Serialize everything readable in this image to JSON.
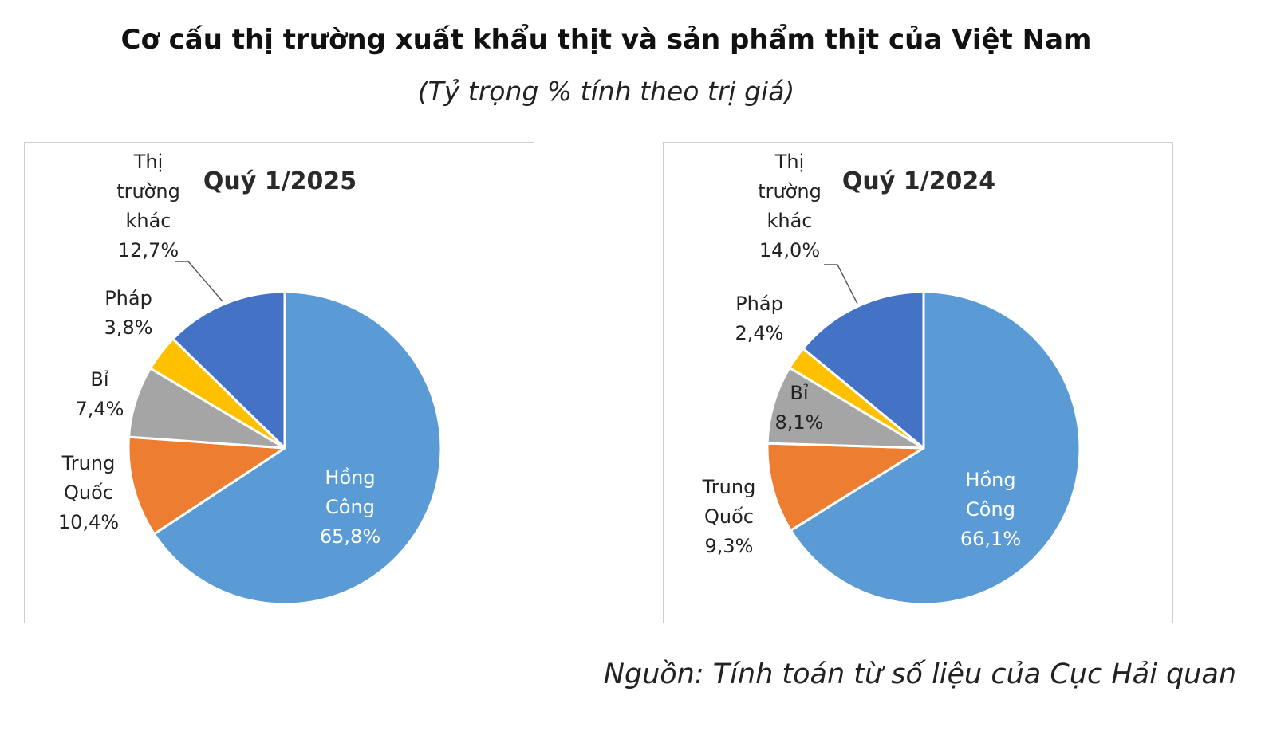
{
  "title": "Cơ cấu thị trường xuất khẩu thịt và sản phẩm thịt của Việt Nam",
  "subtitle": "(Tỷ trọng % tính theo trị giá)",
  "source": "Nguồn: Tính toán từ số liệu của Cục Hải quan",
  "colors": {
    "hong_cong": "#5B9BD5",
    "trung_quoc": "#ED7D31",
    "bi": "#A5A5A5",
    "phap": "#FFC000",
    "khac": "#4472C4"
  },
  "chart_data": [
    {
      "type": "pie",
      "title": "Quý 1/2025",
      "slices": [
        {
          "name": "Hồng Công",
          "value": 65.8,
          "label_lines": [
            "Hồng",
            "Công",
            "65,8%"
          ],
          "color": "#5B9BD5"
        },
        {
          "name": "Trung Quốc",
          "value": 10.4,
          "label_lines": [
            "Trung",
            "Quốc",
            "10,4%"
          ],
          "color": "#ED7D31"
        },
        {
          "name": "Bỉ",
          "value": 7.4,
          "label_lines": [
            "Bỉ",
            "7,4%"
          ],
          "color": "#A5A5A5"
        },
        {
          "name": "Pháp",
          "value": 3.8,
          "label_lines": [
            "Pháp",
            "3,8%"
          ],
          "color": "#FFC000"
        },
        {
          "name": "Thị trường khác",
          "value": 12.7,
          "label_lines": [
            "Thị",
            "trường",
            "khác",
            "12,7%"
          ],
          "color": "#4472C4"
        }
      ]
    },
    {
      "type": "pie",
      "title": "Quý 1/2024",
      "slices": [
        {
          "name": "Hồng Công",
          "value": 66.1,
          "label_lines": [
            "Hồng",
            "Công",
            "66,1%"
          ],
          "color": "#5B9BD5"
        },
        {
          "name": "Trung Quốc",
          "value": 9.3,
          "label_lines": [
            "Trung",
            "Quốc",
            "9,3%"
          ],
          "color": "#ED7D31"
        },
        {
          "name": "Bỉ",
          "value": 8.1,
          "label_lines": [
            "Bỉ",
            "8,1%"
          ],
          "color": "#A5A5A5"
        },
        {
          "name": "Pháp",
          "value": 2.4,
          "label_lines": [
            "Pháp",
            "2,4%"
          ],
          "color": "#FFC000"
        },
        {
          "name": "Thị trường khác",
          "value": 14.0,
          "label_lines": [
            "Thị",
            "trường",
            "khác",
            "14,0%"
          ],
          "color": "#4472C4"
        }
      ]
    }
  ]
}
